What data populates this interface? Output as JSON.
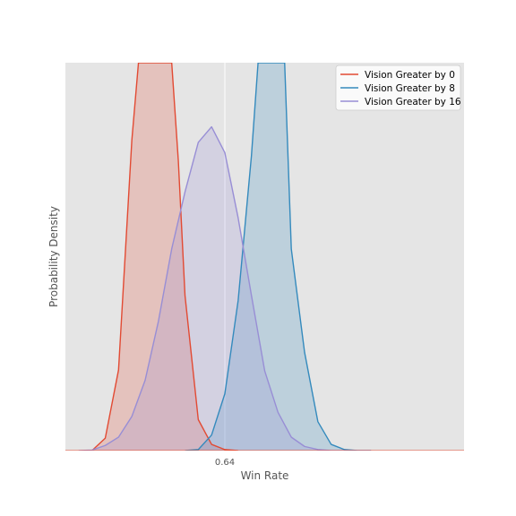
{
  "chart_data": {
    "type": "area",
    "title": "",
    "xlabel": "Win Rate",
    "ylabel": "Probability Density",
    "xlim": [
      0.52,
      0.82
    ],
    "ylim": [
      0,
      37.5
    ],
    "x_ticks": [
      0.64
    ],
    "x_tick_labels": [
      "0.64"
    ],
    "y_ticks": [],
    "grid": true,
    "legend_position": "top-right",
    "series": [
      {
        "name": "Vision Greater by 0",
        "color": "#E24A33",
        "x": [
          0.54,
          0.55,
          0.56,
          0.57,
          0.575,
          0.58,
          0.59,
          0.6,
          0.605,
          0.61,
          0.62,
          0.63,
          0.64,
          0.65
        ],
        "y": [
          0.0,
          1.2,
          7.8,
          30.0,
          37.5,
          37.5,
          37.5,
          37.5,
          28.0,
          15.0,
          3.0,
          0.6,
          0.1,
          0.0
        ]
      },
      {
        "name": "Vision Greater by 8",
        "color": "#348ABD",
        "x": [
          0.61,
          0.62,
          0.63,
          0.64,
          0.65,
          0.66,
          0.665,
          0.67,
          0.68,
          0.685,
          0.69,
          0.7,
          0.71,
          0.72,
          0.73,
          0.74,
          0.75
        ],
        "y": [
          0.0,
          0.1,
          1.5,
          5.5,
          14.5,
          28.5,
          37.5,
          37.5,
          37.5,
          37.5,
          19.5,
          9.5,
          2.8,
          0.6,
          0.1,
          0.0,
          0.0
        ]
      },
      {
        "name": "Vision Greater by 16",
        "color": "#988ED5",
        "x": [
          0.53,
          0.54,
          0.55,
          0.56,
          0.57,
          0.58,
          0.59,
          0.6,
          0.61,
          0.62,
          0.63,
          0.64,
          0.65,
          0.66,
          0.67,
          0.68,
          0.69,
          0.7,
          0.71,
          0.72,
          0.73,
          0.74,
          0.75
        ],
        "y": [
          0.0,
          0.05,
          0.5,
          1.3,
          3.3,
          6.8,
          12.5,
          19.5,
          25.0,
          29.8,
          31.3,
          28.8,
          22.5,
          15.0,
          7.7,
          3.7,
          1.3,
          0.4,
          0.1,
          0.0,
          0.0,
          0.0,
          0.0
        ]
      }
    ]
  }
}
